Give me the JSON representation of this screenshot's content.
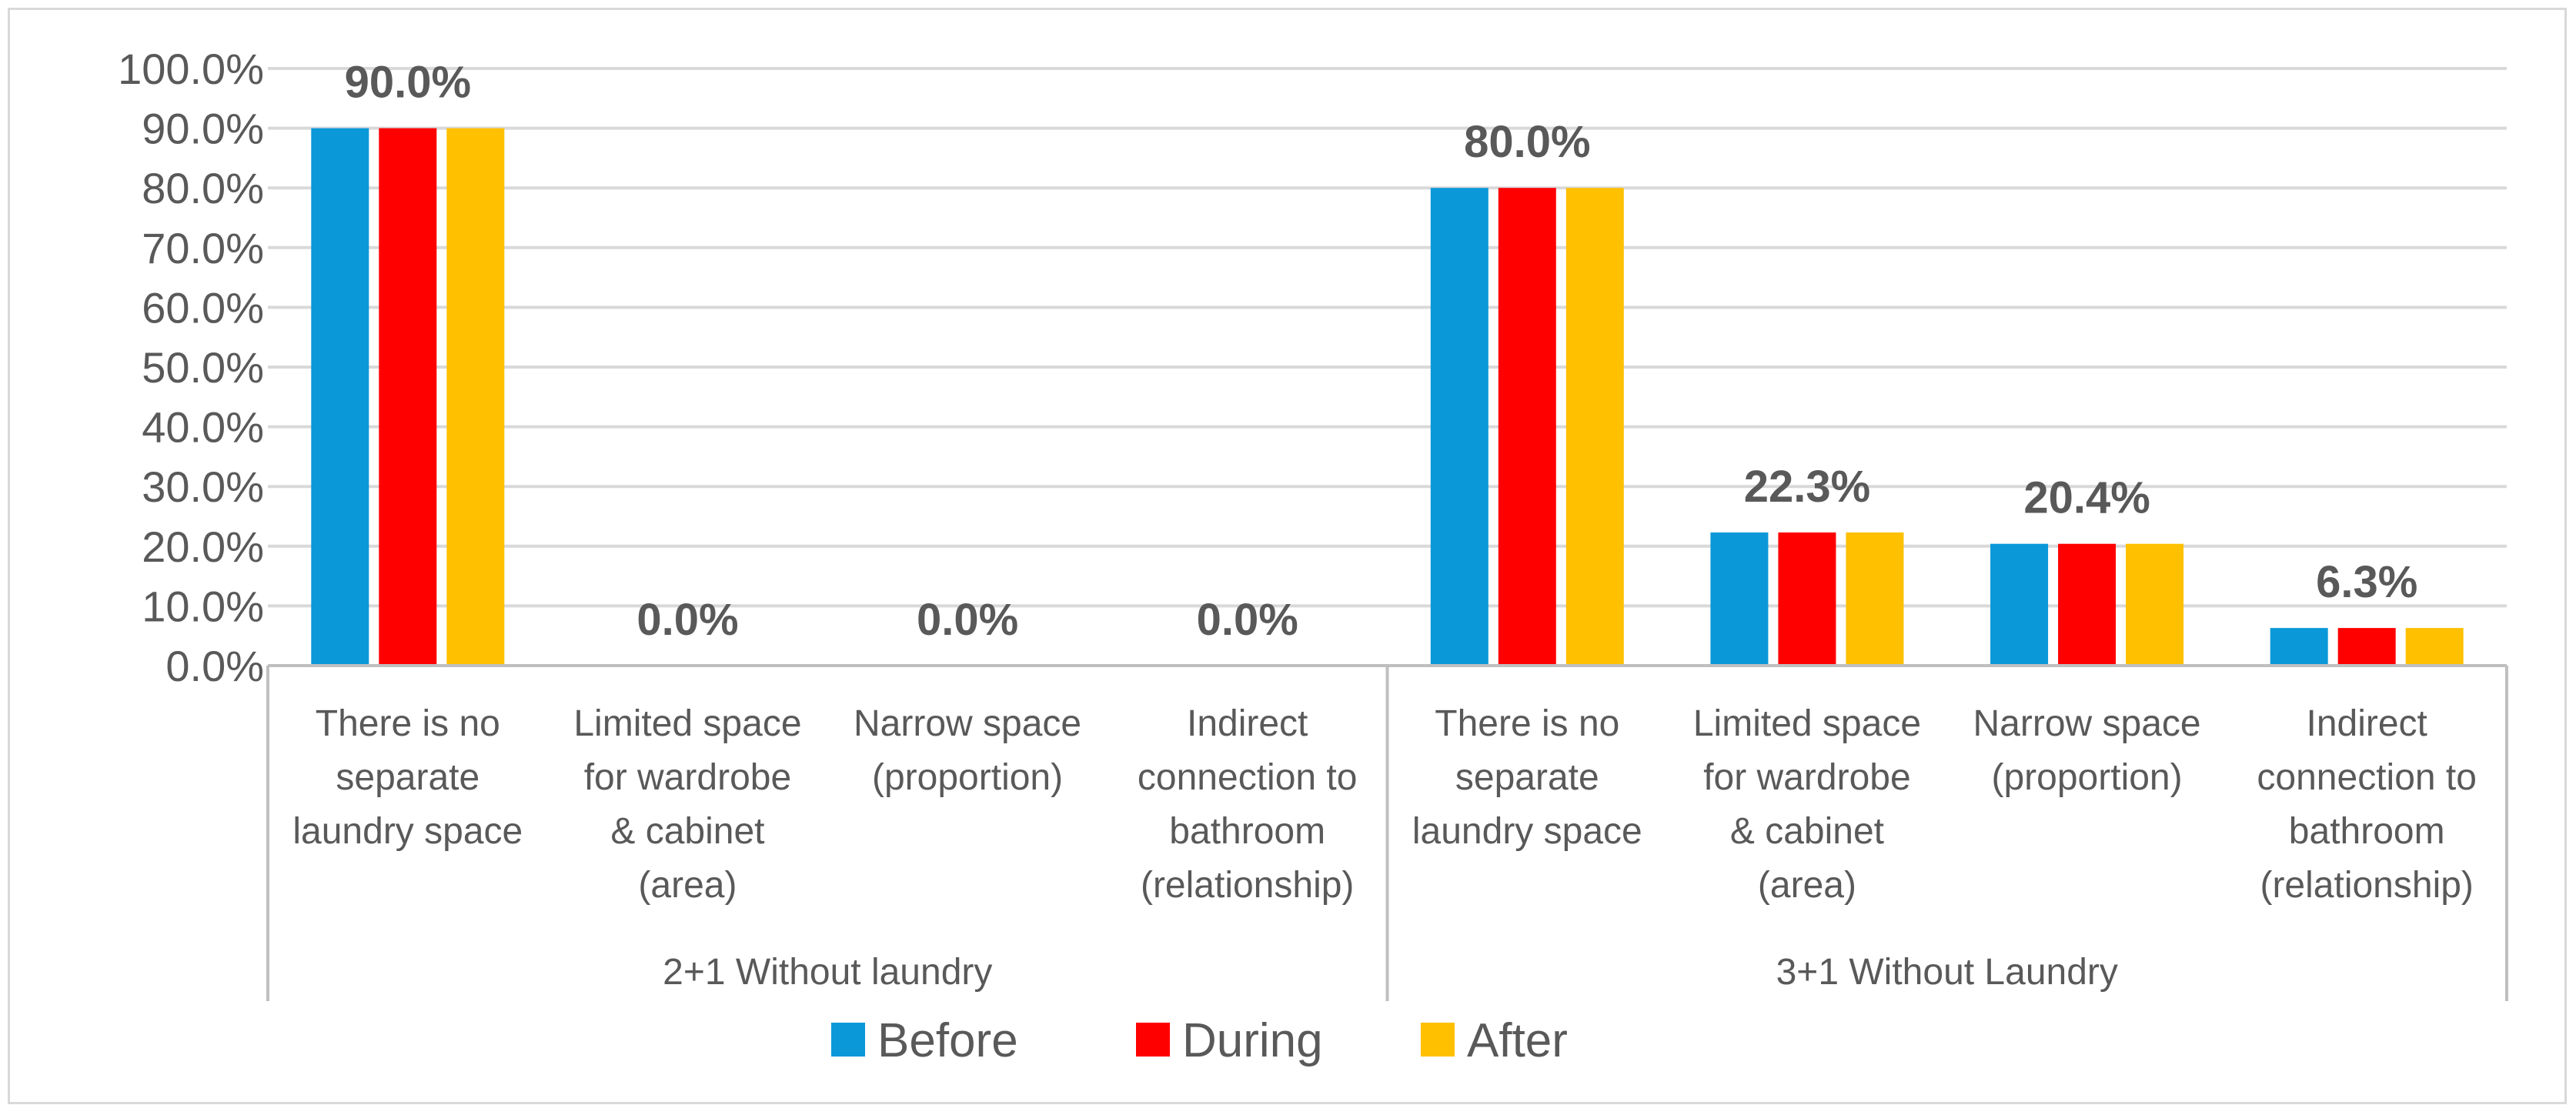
{
  "chart_data": {
    "type": "bar",
    "title": "",
    "xlabel": "",
    "ylabel": "",
    "ylim": [
      0,
      100
    ],
    "yticks": [
      "0.0%",
      "10.0%",
      "20.0%",
      "30.0%",
      "40.0%",
      "50.0%",
      "60.0%",
      "70.0%",
      "80.0%",
      "90.0%",
      "100.0%"
    ],
    "grid": true,
    "legend_position": "bottom",
    "groups": [
      {
        "label": "2+1 Without laundry",
        "categories": [
          [
            "There is no",
            "separate",
            "laundry space"
          ],
          [
            "Limited space",
            "for wardrobe",
            "& cabinet",
            "(area)"
          ],
          [
            "Narrow space",
            "(proportion)"
          ],
          [
            "Indirect",
            "connection to",
            "bathroom",
            "(relationship)"
          ]
        ]
      },
      {
        "label": "3+1 Without Laundry",
        "categories": [
          [
            "There is no",
            "separate",
            "laundry space"
          ],
          [
            "Limited space",
            "for wardrobe",
            "& cabinet",
            "(area)"
          ],
          [
            "Narrow space",
            "(proportion)"
          ],
          [
            "Indirect",
            "connection to",
            "bathroom",
            "(relationship)"
          ]
        ]
      }
    ],
    "data_labels": [
      "90.0%",
      "0.0%",
      "0.0%",
      "0.0%",
      "80.0%",
      "22.3%",
      "20.4%",
      "6.3%"
    ],
    "series": [
      {
        "name": "Before",
        "color": "#0a98d8",
        "values": [
          90.0,
          0.0,
          0.0,
          0.0,
          80.0,
          22.3,
          20.4,
          6.3
        ]
      },
      {
        "name": "During",
        "color": "#ff0000",
        "values": [
          90.0,
          0.0,
          0.0,
          0.0,
          80.0,
          22.3,
          20.4,
          6.3
        ]
      },
      {
        "name": "After",
        "color": "#ffc000",
        "values": [
          90.0,
          0.0,
          0.0,
          0.0,
          80.0,
          22.3,
          20.4,
          6.3
        ]
      }
    ],
    "colors": {
      "grid": "#d9d9d9",
      "axis": "#bfbfbf",
      "text": "#595959"
    }
  }
}
